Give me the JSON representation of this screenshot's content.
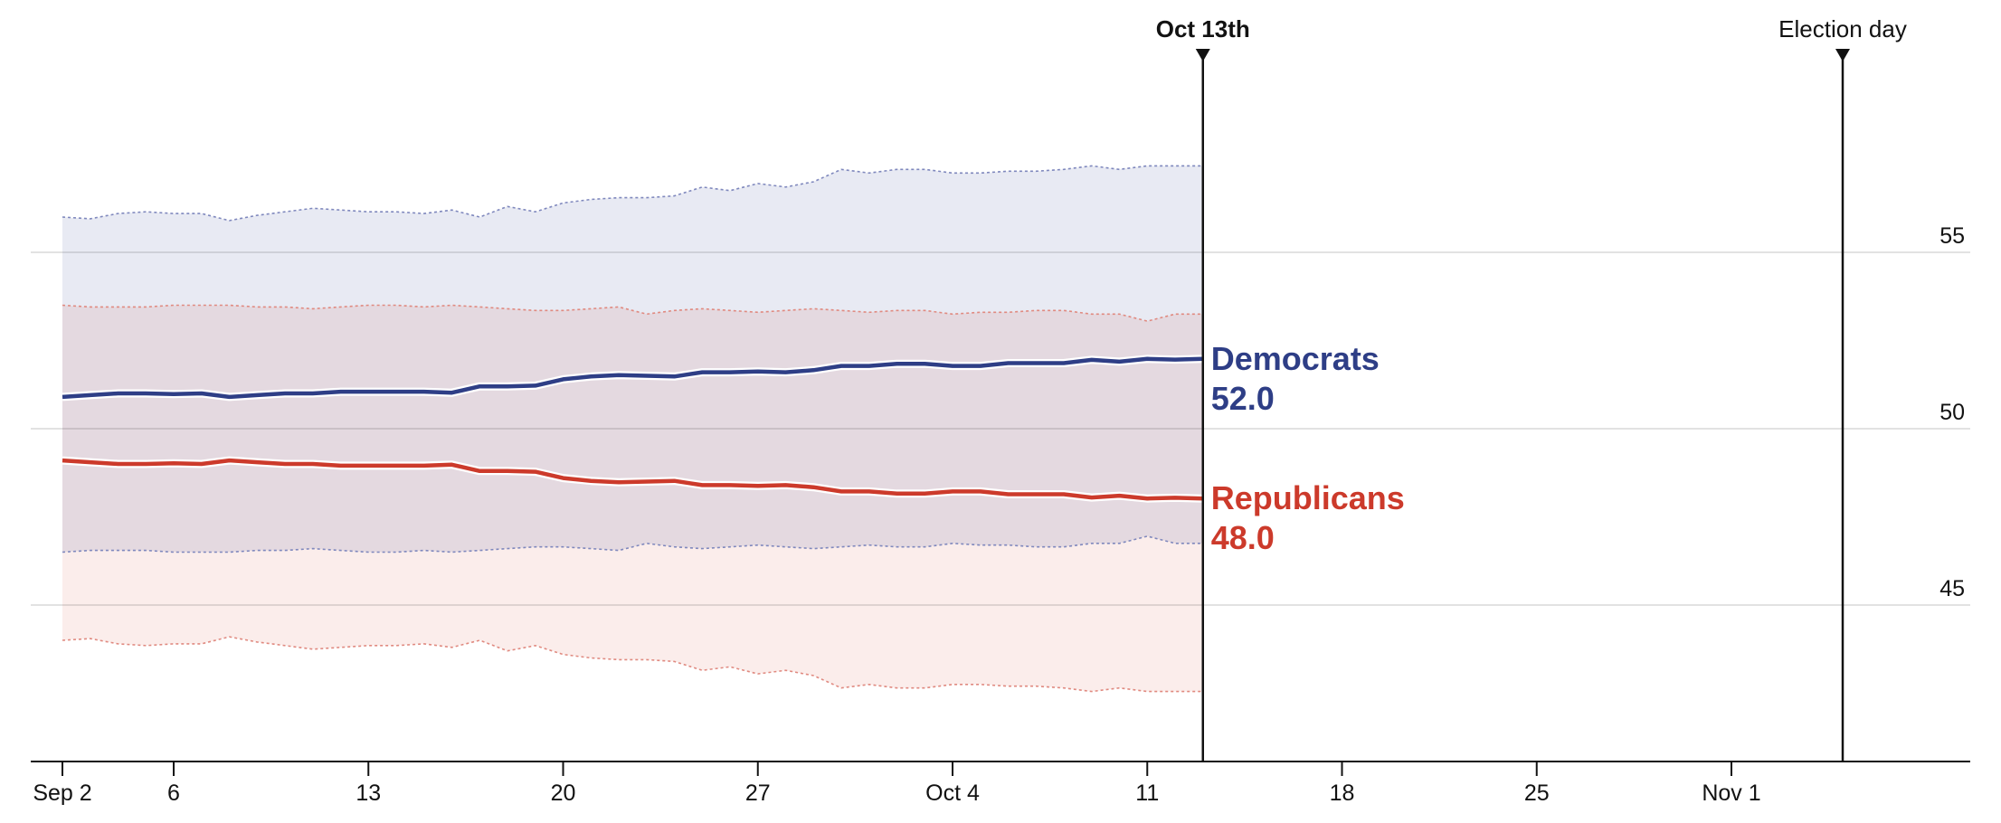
{
  "chart_data": {
    "type": "line",
    "x_axis": {
      "ticks": [
        {
          "label": "Sep 2",
          "date": "2024-09-02"
        },
        {
          "label": "6",
          "date": "2024-09-06"
        },
        {
          "label": "13",
          "date": "2024-09-13"
        },
        {
          "label": "20",
          "date": "2024-09-20"
        },
        {
          "label": "27",
          "date": "2024-09-27"
        },
        {
          "label": "Oct 4",
          "date": "2024-10-04"
        },
        {
          "label": "11",
          "date": "2024-10-11"
        },
        {
          "label": "18",
          "date": "2024-10-18"
        },
        {
          "label": "25",
          "date": "2024-10-25"
        },
        {
          "label": "Nov 1",
          "date": "2024-11-01"
        }
      ],
      "range": [
        "2024-09-01",
        "2024-11-13"
      ]
    },
    "y_axis": {
      "ticks": [
        45,
        50,
        55
      ],
      "range": [
        40.5,
        61.5
      ],
      "position": "right",
      "grid": true
    },
    "markers": [
      {
        "label": "Oct 13th",
        "date": "2024-10-13",
        "emphasis": "bold"
      },
      {
        "label": "Election day",
        "date": "2024-11-05",
        "emphasis": "normal"
      }
    ],
    "series": [
      {
        "name": "Democrats",
        "color": "#2e3e86",
        "band_color": "#c9cee2",
        "band_line_color": "#7f88bd",
        "final_value": "52.0",
        "start_date": "2024-09-02",
        "values": [
          50.9,
          50.95,
          51.0,
          51.0,
          50.98,
          51.0,
          50.9,
          50.95,
          51.0,
          51.0,
          51.05,
          51.05,
          51.05,
          51.05,
          51.02,
          51.2,
          51.2,
          51.22,
          51.4,
          51.48,
          51.52,
          51.5,
          51.48,
          51.6,
          51.6,
          51.62,
          51.6,
          51.66,
          51.78,
          51.78,
          51.84,
          51.84,
          51.78,
          51.78,
          51.86,
          51.86,
          51.86,
          51.95,
          51.9,
          51.98,
          51.96,
          51.98
        ],
        "upper": [
          56.0,
          55.95,
          56.1,
          56.15,
          56.1,
          56.1,
          55.9,
          56.05,
          56.15,
          56.25,
          56.2,
          56.15,
          56.15,
          56.1,
          56.2,
          56.0,
          56.3,
          56.15,
          56.4,
          56.5,
          56.55,
          56.55,
          56.6,
          56.85,
          56.75,
          56.95,
          56.85,
          57.0,
          57.35,
          57.25,
          57.35,
          57.35,
          57.25,
          57.25,
          57.3,
          57.3,
          57.35,
          57.45,
          57.35,
          57.45,
          57.45,
          57.45
        ],
        "lower": [
          46.5,
          46.55,
          46.55,
          46.55,
          46.5,
          46.5,
          46.5,
          46.55,
          46.55,
          46.6,
          46.55,
          46.5,
          46.5,
          46.55,
          46.5,
          46.55,
          46.6,
          46.65,
          46.65,
          46.6,
          46.55,
          46.75,
          46.65,
          46.6,
          46.65,
          46.7,
          46.65,
          46.6,
          46.65,
          46.7,
          46.65,
          46.65,
          46.75,
          46.7,
          46.7,
          46.65,
          46.65,
          46.75,
          46.75,
          46.95,
          46.75,
          46.75
        ]
      },
      {
        "name": "Republicans",
        "color": "#cc3a2b",
        "band_color": "#f5d5d0",
        "band_line_color": "#e08a80",
        "final_value": "48.0",
        "start_date": "2024-09-02",
        "values": [
          49.1,
          49.05,
          49.0,
          49.0,
          49.02,
          49.0,
          49.1,
          49.05,
          49.0,
          49.0,
          48.95,
          48.95,
          48.95,
          48.95,
          48.98,
          48.8,
          48.8,
          48.78,
          48.6,
          48.52,
          48.48,
          48.5,
          48.52,
          48.4,
          48.4,
          48.38,
          48.4,
          48.34,
          48.22,
          48.22,
          48.16,
          48.16,
          48.22,
          48.22,
          48.14,
          48.14,
          48.14,
          48.05,
          48.1,
          48.02,
          48.04,
          48.02
        ],
        "upper": [
          53.5,
          53.45,
          53.45,
          53.45,
          53.5,
          53.5,
          53.5,
          53.45,
          53.45,
          53.4,
          53.45,
          53.5,
          53.5,
          53.45,
          53.5,
          53.45,
          53.4,
          53.35,
          53.35,
          53.4,
          53.45,
          53.25,
          53.35,
          53.4,
          53.35,
          53.3,
          53.35,
          53.4,
          53.35,
          53.3,
          53.35,
          53.35,
          53.25,
          53.3,
          53.3,
          53.35,
          53.35,
          53.25,
          53.25,
          53.05,
          53.25,
          53.25
        ],
        "lower": [
          44.0,
          44.05,
          43.9,
          43.85,
          43.9,
          43.9,
          44.1,
          43.95,
          43.85,
          43.75,
          43.8,
          43.85,
          43.85,
          43.9,
          43.8,
          44.0,
          43.7,
          43.85,
          43.6,
          43.5,
          43.45,
          43.45,
          43.4,
          43.15,
          43.25,
          43.05,
          43.15,
          43.0,
          42.65,
          42.75,
          42.65,
          42.65,
          42.75,
          42.75,
          42.7,
          42.7,
          42.65,
          42.55,
          42.65,
          42.55,
          42.55,
          42.55
        ]
      }
    ]
  }
}
